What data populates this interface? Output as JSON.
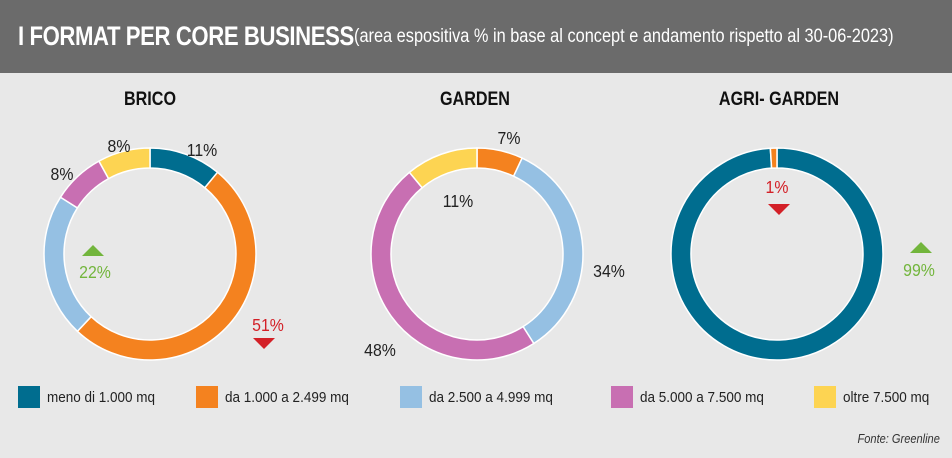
{
  "header": {
    "title": "I FORMAT PER CORE BUSINESS",
    "subtitle": "(area espositiva % in base al concept e andamento rispetto al 30-06-2023)"
  },
  "colors": {
    "teal": "#006d8f",
    "orange": "#f4821f",
    "lightblue": "#95c0e3",
    "pink": "#c86fb2",
    "yellow": "#fdd452",
    "up": "#72b53c",
    "down": "#d32027"
  },
  "legend": [
    {
      "label": "meno di 1.000 mq",
      "color": "#006d8f"
    },
    {
      "label": "da 1.000 a 2.499 mq",
      "color": "#f4821f"
    },
    {
      "label": "da 2.500 a 4.999 mq",
      "color": "#95c0e3"
    },
    {
      "label": "da 5.000 a 7.500 mq",
      "color": "#c86fb2"
    },
    {
      "label": "oltre 7.500 mq",
      "color": "#fdd452"
    }
  ],
  "source": "Fonte: Greenline",
  "chart_data": [
    {
      "type": "pie",
      "title": "BRICO",
      "categories": [
        "meno di 1.000 mq",
        "da 1.000 a 2.499 mq",
        "da 2.500 a 4.999 mq",
        "da 5.000 a 7.500 mq",
        "oltre 7.500 mq"
      ],
      "values": [
        11,
        51,
        22,
        8,
        8
      ],
      "labels": [
        "11%",
        "51%",
        "22%",
        "8%",
        "8%"
      ],
      "trend": [
        null,
        "down",
        "up",
        null,
        null
      ]
    },
    {
      "type": "pie",
      "title": "GARDEN",
      "categories": [
        "meno di 1.000 mq",
        "da 1.000 a 2.499 mq",
        "da 2.500 a 4.999 mq",
        "da 5.000 a 7.500 mq",
        "oltre 7.500 mq"
      ],
      "values": [
        0,
        7,
        34,
        48,
        11
      ],
      "labels": [
        "",
        "7%",
        "34%",
        "48%",
        "11%"
      ],
      "trend": [
        null,
        null,
        null,
        null,
        null
      ]
    },
    {
      "type": "pie",
      "title": "AGRI- GARDEN",
      "categories": [
        "meno di 1.000 mq",
        "da 1.000 a 2.499 mq",
        "da 2.500 a 4.999 mq",
        "da 5.000 a 7.500 mq",
        "oltre 7.500 mq"
      ],
      "values": [
        99,
        1,
        0,
        0,
        0
      ],
      "labels": [
        "99%",
        "1%",
        "",
        "",
        ""
      ],
      "trend": [
        "up",
        "down",
        null,
        null,
        null
      ]
    }
  ]
}
